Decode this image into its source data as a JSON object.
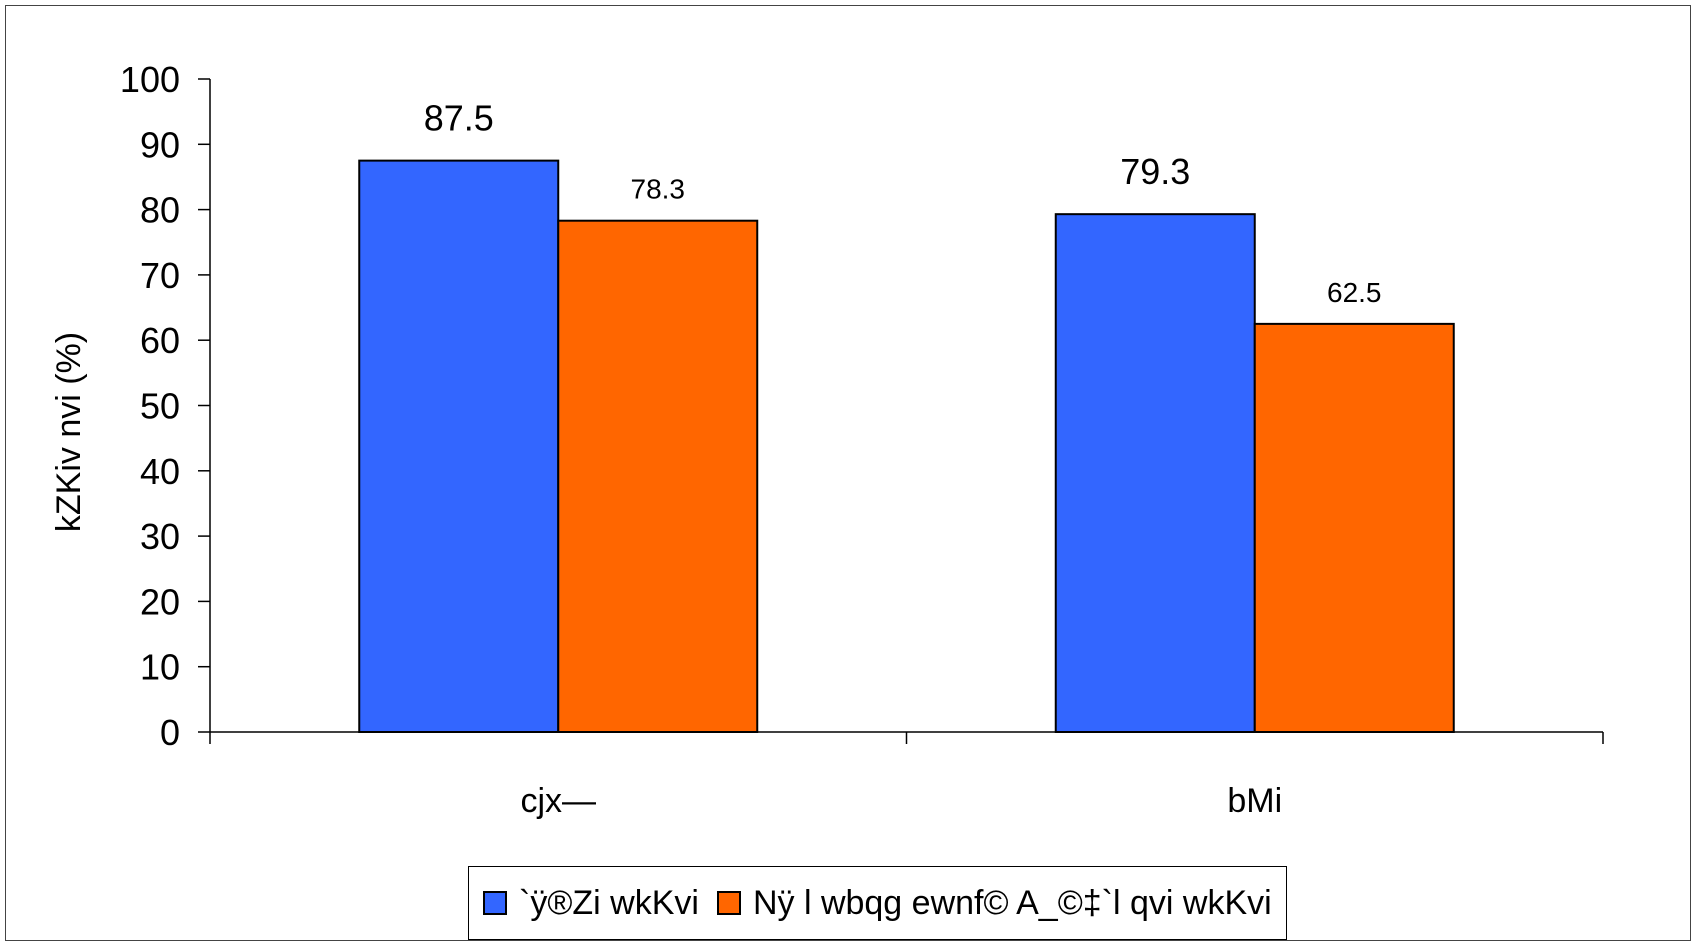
{
  "chart_data": {
    "type": "bar",
    "categories": [
      "cjx—",
      "bMi"
    ],
    "series": [
      {
        "name": "`ÿ®Zi wkKvi",
        "values": [
          87.5,
          79.3
        ],
        "color": "#3366FF"
      },
      {
        "name": "Nÿ l wbqg ewnf© A_©‡`l qvi wkKvi",
        "values": [
          78.3,
          62.5
        ],
        "color": "#FF6600"
      }
    ],
    "data_labels": [
      [
        "87.5",
        "79.3"
      ],
      [
        "78.3",
        "62.5"
      ]
    ],
    "ylabel": "kZKiv nvi (%)",
    "xlabel": "",
    "title": "",
    "ylim": [
      0,
      100
    ],
    "yticks": [
      0,
      10,
      20,
      30,
      40,
      50,
      60,
      70,
      80,
      90,
      100
    ],
    "grid": false,
    "legend_position": "bottom"
  }
}
